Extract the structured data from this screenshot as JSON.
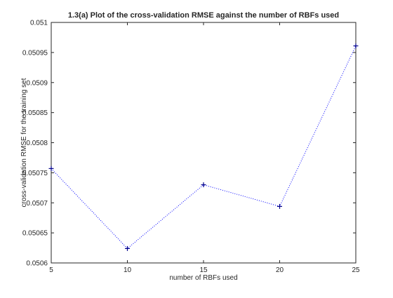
{
  "chart_data": {
    "type": "line",
    "title": "1.3(a)  Plot of the cross-validation RMSE against the number of RBFs used",
    "xlabel": "number of RBFs used",
    "ylabel": "cross-validation RMSE for the training set",
    "xlim": [
      5,
      25
    ],
    "ylim": [
      0.0506,
      0.051
    ],
    "x_ticks": [
      "5",
      "10",
      "15",
      "20",
      "25"
    ],
    "y_ticks": [
      "0.0506",
      "0.05065",
      "0.0507",
      "0.05075",
      "0.0508",
      "0.05085",
      "0.0509",
      "0.05095",
      "0.051"
    ],
    "grid": false,
    "legend": "none",
    "series": [
      {
        "x": [
          5,
          10,
          15,
          20,
          25
        ],
        "values": [
          0.050757,
          0.050624,
          0.05073,
          0.050694,
          0.050961
        ],
        "line_style": "dotted",
        "marker": "+",
        "color": "#0000ff"
      }
    ]
  }
}
